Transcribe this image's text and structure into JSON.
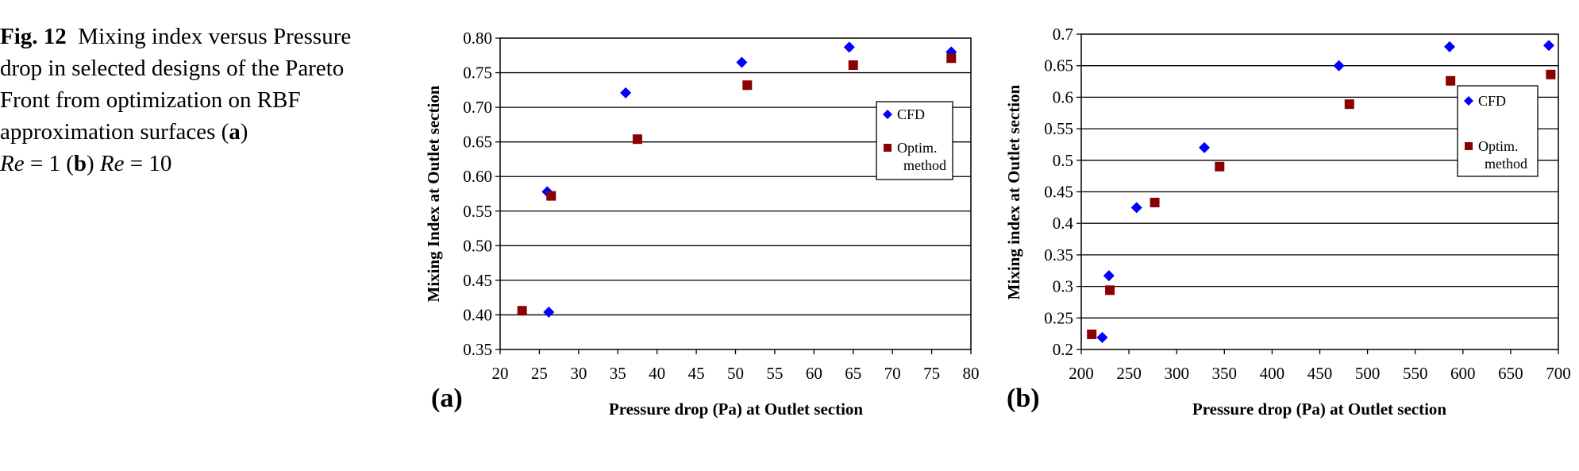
{
  "caption": {
    "fig": "Fig. 12",
    "text1": "Mixing index versus Pressure drop in selected designs of the Pareto Front from optimization on RBF approximation surfaces (",
    "a": "a",
    "re1_pre": ") ",
    "re": "Re",
    "eq1": " = 1 (",
    "b": "b",
    "re2_pre": ") ",
    "eq2": " = 10"
  },
  "colors": {
    "cfd": "#0000ff",
    "optim": "#8b0000",
    "grid": "#000000"
  },
  "chart_data": [
    {
      "type": "scatter",
      "panel_label": "(a)",
      "xlabel": "Pressure drop (Pa) at Outlet section",
      "ylabel": "Mixing Index at Outlet section",
      "xlim": [
        20,
        80
      ],
      "ylim": [
        0.35,
        0.8
      ],
      "xticks": [
        "20",
        "25",
        "30",
        "35",
        "40",
        "45",
        "50",
        "55",
        "60",
        "65",
        "70",
        "75",
        "80"
      ],
      "yticks": [
        "0.35",
        "0.40",
        "0.45",
        "0.50",
        "0.55",
        "0.60",
        "0.65",
        "0.70",
        "0.75",
        "0.80"
      ],
      "grid": "horizontal",
      "legend_position": "right",
      "series": [
        {
          "name": "CFD",
          "marker": "diamond",
          "points": [
            [
              26.0,
              0.578
            ],
            [
              26.2,
              0.404
            ],
            [
              36.0,
              0.721
            ],
            [
              50.8,
              0.765
            ],
            [
              64.5,
              0.787
            ],
            [
              77.5,
              0.78
            ]
          ]
        },
        {
          "name": "Optim.\nmethod",
          "name_lines": [
            "Optim.",
            "method"
          ],
          "marker": "square",
          "points": [
            [
              22.8,
              0.406
            ],
            [
              26.5,
              0.572
            ],
            [
              37.5,
              0.654
            ],
            [
              51.5,
              0.732
            ],
            [
              65.0,
              0.761
            ],
            [
              77.5,
              0.771
            ]
          ]
        }
      ]
    },
    {
      "type": "scatter",
      "panel_label": "(b)",
      "xlabel": "Pressure drop (Pa) at Outlet section",
      "ylabel": "Mixing index at Outlet section",
      "xlim": [
        200,
        700
      ],
      "ylim": [
        0.2,
        0.7
      ],
      "xticks": [
        "200",
        "250",
        "300",
        "350",
        "400",
        "450",
        "500",
        "550",
        "600",
        "650",
        "700"
      ],
      "yticks": [
        "0.2",
        "0.25",
        "0.3",
        "0.35",
        "0.4",
        "0.45",
        "0.5",
        "0.55",
        "0.6",
        "0.65",
        "0.7"
      ],
      "grid": "horizontal",
      "legend_position": "right",
      "series": [
        {
          "name": "CFD",
          "marker": "diamond",
          "points": [
            [
              222,
              0.219
            ],
            [
              229,
              0.317
            ],
            [
              258,
              0.425
            ],
            [
              329,
              0.52
            ],
            [
              470,
              0.65
            ],
            [
              586,
              0.68
            ],
            [
              690,
              0.682
            ]
          ]
        },
        {
          "name": "Optim.\nmethod",
          "name_lines": [
            "Optim.",
            "method"
          ],
          "marker": "square",
          "points": [
            [
              211,
              0.224
            ],
            [
              230,
              0.294
            ],
            [
              277,
              0.433
            ],
            [
              345,
              0.49
            ],
            [
              481,
              0.589
            ],
            [
              587,
              0.626
            ],
            [
              692,
              0.636
            ]
          ]
        }
      ]
    }
  ]
}
